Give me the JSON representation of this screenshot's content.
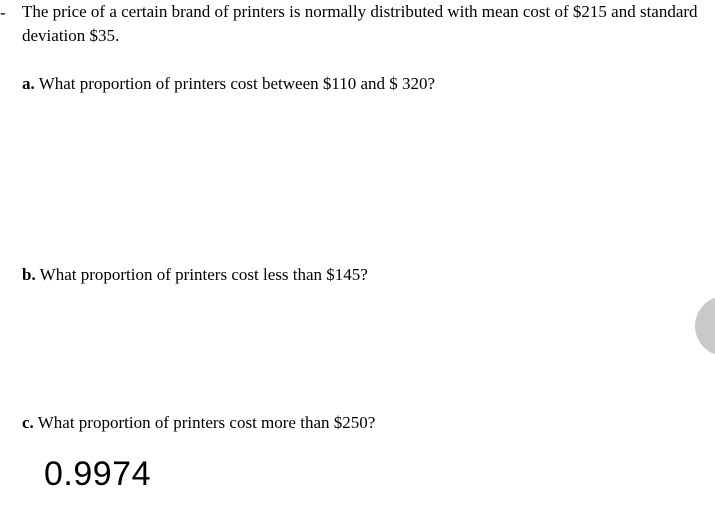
{
  "dash": "-",
  "intro": "The price of a certain brand of printers is normally distributed with mean cost of $215 and standard deviation $35.",
  "questions": {
    "a": {
      "label": "a.",
      "text": " What proportion of printers cost between $110 and $ 320?"
    },
    "b": {
      "label": "b.",
      "text": " What proportion of printers cost less than $145?"
    },
    "c": {
      "label": "c.",
      "text": " What proportion of printers cost more than $250?"
    }
  },
  "answer": "0.9974"
}
